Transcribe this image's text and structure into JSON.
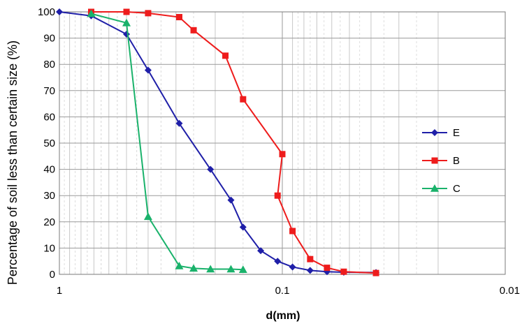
{
  "chart_data": {
    "type": "line",
    "title": "",
    "xlabel": "d(mm)",
    "ylabel": "Percentage of soil less than certain size (%)",
    "x_scale": "log",
    "x_reversed": true,
    "xlim": [
      1,
      0.01
    ],
    "ylim": [
      0,
      100
    ],
    "x_ticks": [
      {
        "value": 1,
        "label": "1"
      },
      {
        "value": 0.1,
        "label": "0.1"
      },
      {
        "value": 0.01,
        "label": "0.01"
      }
    ],
    "y_ticks": [
      0,
      10,
      20,
      30,
      40,
      50,
      60,
      70,
      80,
      90,
      100
    ],
    "grid": true,
    "legend_position": "right",
    "series": [
      {
        "name": "E",
        "color": "#1f1fa8",
        "marker": "diamond",
        "points": [
          [
            1.0,
            100
          ],
          [
            0.72,
            98.5
          ],
          [
            0.5,
            91.5
          ],
          [
            0.4,
            77.8
          ],
          [
            0.29,
            57.5
          ],
          [
            0.21,
            40
          ],
          [
            0.17,
            28.3
          ],
          [
            0.15,
            18
          ],
          [
            0.125,
            9
          ],
          [
            0.105,
            5
          ],
          [
            0.09,
            2.8
          ],
          [
            0.075,
            1.5
          ],
          [
            0.063,
            1
          ],
          [
            0.053,
            0.8
          ],
          [
            0.038,
            0.7
          ]
        ]
      },
      {
        "name": "B",
        "color": "#ee1c1c",
        "marker": "square",
        "points": [
          [
            0.72,
            100
          ],
          [
            0.5,
            100
          ],
          [
            0.4,
            99.5
          ],
          [
            0.29,
            98
          ],
          [
            0.25,
            93
          ],
          [
            0.18,
            83.3
          ],
          [
            0.15,
            66.7
          ],
          [
            0.1,
            45.8
          ],
          [
            0.105,
            30
          ],
          [
            0.09,
            16.5
          ],
          [
            0.075,
            5.8
          ],
          [
            0.063,
            2.5
          ],
          [
            0.053,
            1
          ],
          [
            0.038,
            0.5
          ]
        ]
      },
      {
        "name": "C",
        "color": "#1ab26b",
        "marker": "triangle",
        "points": [
          [
            0.72,
            99.3
          ],
          [
            0.5,
            95.8
          ],
          [
            0.4,
            22
          ],
          [
            0.29,
            3.2
          ],
          [
            0.25,
            2.3
          ],
          [
            0.21,
            2
          ],
          [
            0.17,
            2
          ],
          [
            0.15,
            1.8
          ]
        ]
      }
    ]
  }
}
